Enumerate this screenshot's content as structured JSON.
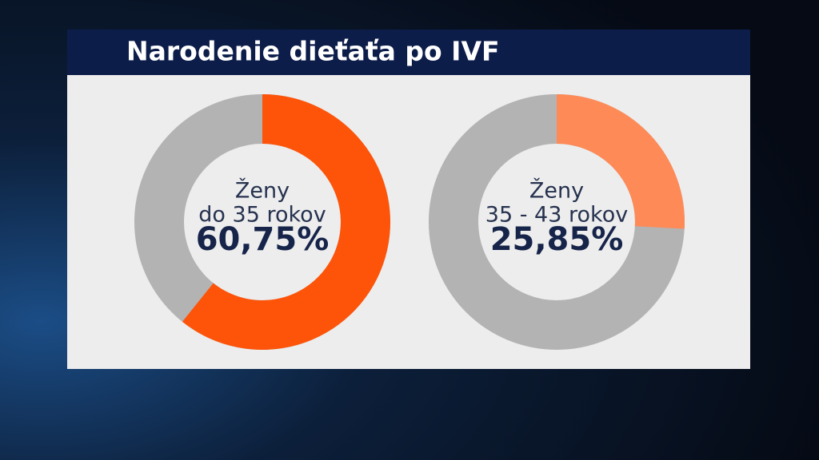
{
  "title": "Narodenie dieťaťa po IVF",
  "chart_data": [
    {
      "type": "donut",
      "label": [
        "Ženy",
        "do 35 rokov"
      ],
      "values": [
        60.75
      ],
      "value_labels": [
        "60,75%"
      ],
      "color": "#fd5409"
    },
    {
      "type": "donut",
      "label": [
        "Ženy",
        "35 - 43 rokov"
      ],
      "values": [
        25.85
      ],
      "value_labels": [
        "25,85%"
      ],
      "color": "#fe8a57"
    }
  ]
}
